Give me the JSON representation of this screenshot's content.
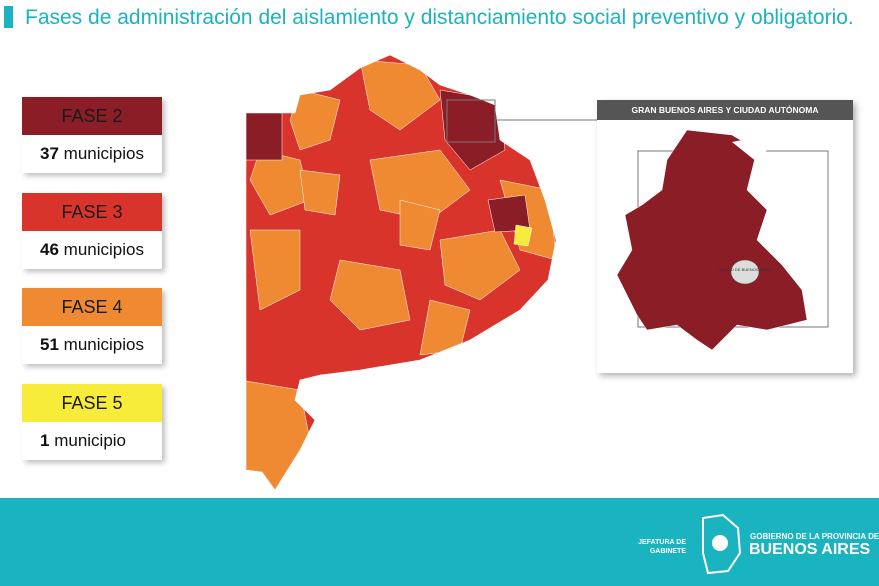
{
  "header": {
    "title": "Fases de administración del aislamiento y distanciamiento social preventivo y obligatorio."
  },
  "legend": [
    {
      "phase": "FASE 2",
      "count": 37,
      "unit": "municipios",
      "color": "#8b1d27"
    },
    {
      "phase": "FASE 3",
      "count": 46,
      "unit": "municipios",
      "color": "#d9342b"
    },
    {
      "phase": "FASE 4",
      "count": 51,
      "unit": "municipios",
      "color": "#f08a32"
    },
    {
      "phase": "FASE 5",
      "count": 1,
      "unit": "municipio",
      "color": "#f8ec3a"
    }
  ],
  "inset": {
    "title": "GRAN BUENOS AIRES Y CIUDAD AUTÓNOMA",
    "city_label": "CIUDAD DE BUENOS AIRES"
  },
  "footer": {
    "left": "JEFATURA DE GABINETE",
    "right_top": "GOBIERNO DE LA PROVINCIA DE",
    "right_main": "BUENOS AIRES"
  }
}
